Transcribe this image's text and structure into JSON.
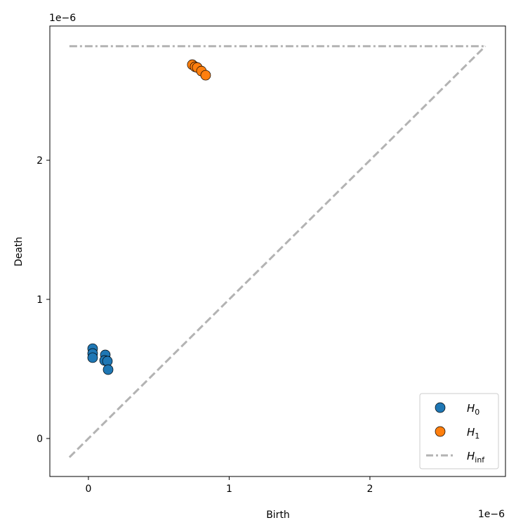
{
  "chart_data": {
    "type": "scatter",
    "title": "",
    "xlabel": "Birth",
    "ylabel": "Death",
    "x_offset_label": "1e−6",
    "y_offset_label": "1e−6",
    "xlim": [
      -0.274,
      2.963
    ],
    "ylim": [
      -0.273,
      2.965
    ],
    "xticks": [
      {
        "v": 0,
        "label": "0"
      },
      {
        "v": 1,
        "label": "1"
      },
      {
        "v": 2,
        "label": "2"
      }
    ],
    "yticks": [
      {
        "v": 0,
        "label": "0"
      },
      {
        "v": 1,
        "label": "1"
      },
      {
        "v": 2,
        "label": "2"
      }
    ],
    "grid": false,
    "legend_position": "lower-right",
    "diagonal": {
      "from": -0.135,
      "to": 2.82,
      "color": "#b3b3b3",
      "style": "dashed"
    },
    "series": [
      {
        "name": "H",
        "sub": "0",
        "color": "#1f77b4",
        "points": [
          [
            0.03,
            0.646
          ],
          [
            0.03,
            0.611
          ],
          [
            0.03,
            0.581
          ],
          [
            0.12,
            0.601
          ],
          [
            0.115,
            0.561
          ],
          [
            0.135,
            0.556
          ],
          [
            0.14,
            0.495
          ]
        ]
      },
      {
        "name": "H",
        "sub": "1",
        "color": "#ff7f0e",
        "points": [
          [
            0.738,
            2.687
          ],
          [
            0.758,
            2.672
          ],
          [
            0.773,
            2.667
          ],
          [
            0.803,
            2.641
          ],
          [
            0.833,
            2.611
          ]
        ]
      }
    ],
    "h_inf": {
      "name": "H",
      "sub": "inf",
      "y": 2.82,
      "x_from": -0.135,
      "x_to": 2.82,
      "color": "#b3b3b3",
      "style": "dashdot"
    }
  }
}
